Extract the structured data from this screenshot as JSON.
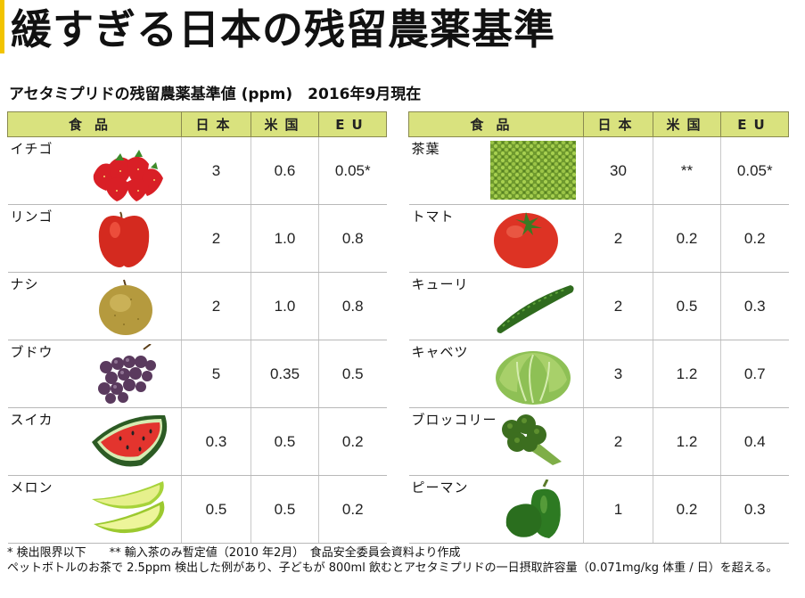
{
  "title": "緩すぎる日本の残留農薬基準",
  "subtitle": "アセタミプリドの残留農薬基準値 (ppm)　2016年9月現在",
  "header": {
    "food": "食品",
    "japan": "日本",
    "us": "米国",
    "eu": "EU"
  },
  "left_rows": [
    {
      "food": "イチゴ",
      "japan": "3",
      "us": "0.6",
      "eu": "0.05*",
      "icon": "strawberry-icon"
    },
    {
      "food": "リンゴ",
      "japan": "2",
      "us": "1.0",
      "eu": "0.8",
      "icon": "apple-icon"
    },
    {
      "food": "ナシ",
      "japan": "2",
      "us": "1.0",
      "eu": "0.8",
      "icon": "pear-icon"
    },
    {
      "food": "ブドウ",
      "japan": "5",
      "us": "0.35",
      "eu": "0.5",
      "icon": "grapes-icon"
    },
    {
      "food": "スイカ",
      "japan": "0.3",
      "us": "0.5",
      "eu": "0.2",
      "icon": "watermelon-icon"
    },
    {
      "food": "メロン",
      "japan": "0.5",
      "us": "0.5",
      "eu": "0.2",
      "icon": "melon-icon"
    }
  ],
  "right_rows": [
    {
      "food": "茶葉",
      "japan": "30",
      "us": "**",
      "eu": "0.05*",
      "icon": "tea-leaves-icon"
    },
    {
      "food": "トマト",
      "japan": "2",
      "us": "0.2",
      "eu": "0.2",
      "icon": "tomato-icon"
    },
    {
      "food": "キューリ",
      "japan": "2",
      "us": "0.5",
      "eu": "0.3",
      "icon": "cucumber-icon"
    },
    {
      "food": "キャベツ",
      "japan": "3",
      "us": "1.2",
      "eu": "0.7",
      "icon": "cabbage-icon"
    },
    {
      "food": "ブロッコリー",
      "japan": "2",
      "us": "1.2",
      "eu": "0.4",
      "icon": "broccoli-icon"
    },
    {
      "food": "ピーマン",
      "japan": "1",
      "us": "0.2",
      "eu": "0.3",
      "icon": "green-pepper-icon"
    }
  ],
  "notes": {
    "line1": "* 検出限界以下　　** 輸入茶のみ暫定値（2010 年2月）　食品安全委員会資料より作成",
    "line2": "ペットボトルのお茶で 2.5ppm 検出した例があり、子どもが 800ml 飲むとアセタミプリドの一日摂取許容量（0.071mg/kg 体重 / 日）を超える。"
  },
  "colors": {
    "header_bg": "#d9e27e",
    "title_accent": "#f2c400"
  }
}
